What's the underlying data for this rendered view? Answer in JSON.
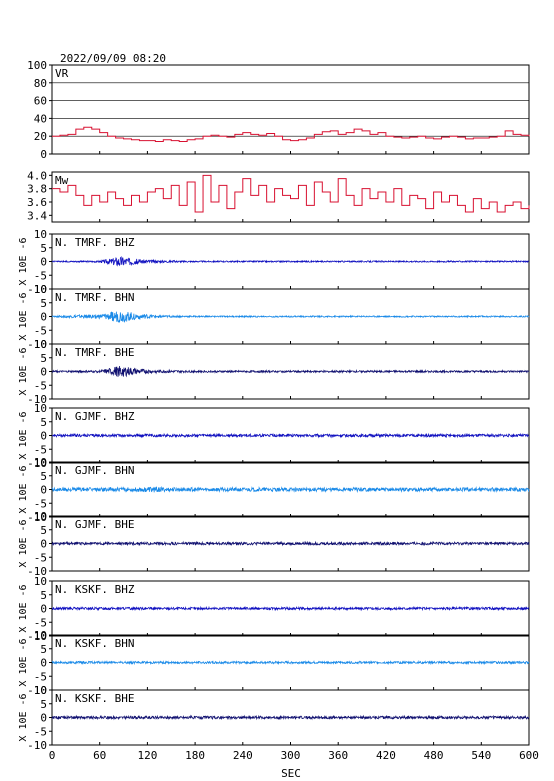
{
  "title": "2022/09/09  08:20",
  "x_axis": {
    "label": "SEC",
    "ticks": [
      "0",
      "60",
      "120",
      "180",
      "240",
      "300",
      "360",
      "420",
      "480",
      "540",
      "600"
    ],
    "range": [
      0,
      600
    ]
  },
  "colors": {
    "vr": "#d81030",
    "mw": "#d81030",
    "dark": "#101070",
    "blue": "#1010c0",
    "light": "#1a8ae8"
  },
  "chart_data": [
    {
      "type": "line",
      "label": "VR",
      "ylim": [
        0,
        100
      ],
      "yticks": [
        "0",
        "20",
        "40",
        "60",
        "80",
        "100"
      ],
      "grid": true,
      "x": [
        0,
        10,
        20,
        30,
        40,
        50,
        60,
        70,
        80,
        90,
        100,
        110,
        120,
        130,
        140,
        150,
        160,
        170,
        180,
        190,
        200,
        210,
        220,
        230,
        240,
        250,
        260,
        270,
        280,
        290,
        300,
        310,
        320,
        330,
        340,
        350,
        360,
        370,
        380,
        390,
        400,
        410,
        420,
        430,
        440,
        450,
        460,
        470,
        480,
        490,
        500,
        510,
        520,
        530,
        540,
        550,
        560,
        570,
        580,
        590,
        600
      ],
      "y": [
        20,
        21,
        22,
        28,
        30,
        28,
        24,
        20,
        18,
        17,
        16,
        15,
        15,
        14,
        16,
        15,
        14,
        16,
        17,
        20,
        21,
        20,
        19,
        22,
        24,
        22,
        21,
        23,
        20,
        16,
        15,
        16,
        18,
        22,
        25,
        26,
        22,
        24,
        28,
        26,
        22,
        24,
        20,
        19,
        18,
        19,
        20,
        18,
        17,
        19,
        20,
        19,
        17,
        18,
        18,
        19,
        20,
        26,
        22,
        21,
        20
      ]
    },
    {
      "type": "line",
      "label": "Mw",
      "ylim": [
        3.3,
        4.05
      ],
      "yticks": [
        "3.4",
        "3.6",
        "3.8",
        "4.0"
      ],
      "grid": false,
      "x": [
        0,
        10,
        20,
        30,
        40,
        50,
        60,
        70,
        80,
        90,
        100,
        110,
        120,
        130,
        140,
        150,
        160,
        170,
        180,
        190,
        200,
        210,
        220,
        230,
        240,
        250,
        260,
        270,
        280,
        290,
        300,
        310,
        320,
        330,
        340,
        350,
        360,
        370,
        380,
        390,
        400,
        410,
        420,
        430,
        440,
        450,
        460,
        470,
        480,
        490,
        500,
        510,
        520,
        530,
        540,
        550,
        560,
        570,
        580,
        590,
        600
      ],
      "y": [
        3.8,
        3.75,
        3.85,
        3.7,
        3.55,
        3.7,
        3.6,
        3.75,
        3.65,
        3.55,
        3.7,
        3.6,
        3.75,
        3.8,
        3.65,
        3.85,
        3.55,
        3.9,
        3.45,
        4.0,
        3.6,
        3.85,
        3.5,
        3.75,
        3.95,
        3.7,
        3.85,
        3.6,
        3.8,
        3.7,
        3.65,
        3.85,
        3.55,
        3.9,
        3.75,
        3.6,
        3.95,
        3.7,
        3.55,
        3.8,
        3.65,
        3.75,
        3.6,
        3.8,
        3.55,
        3.7,
        3.65,
        3.5,
        3.75,
        3.6,
        3.7,
        3.55,
        3.45,
        3.65,
        3.5,
        3.6,
        3.45,
        3.55,
        3.6,
        3.5,
        3.55
      ]
    },
    {
      "type": "line",
      "label": "N. TMRF. BHZ",
      "ylabel": "X 10E -6",
      "ylim": [
        -10,
        10
      ],
      "yticks": [
        "10",
        "5",
        "0",
        "-5",
        "-10"
      ],
      "color": "blue",
      "x": [
        0,
        60,
        75,
        85,
        95,
        110,
        140,
        180,
        300,
        420,
        540,
        600
      ],
      "amplitude": [
        0.2,
        0.3,
        1.2,
        2.0,
        1.5,
        0.8,
        0.4,
        0.25,
        0.25,
        0.25,
        0.25,
        0.25
      ]
    },
    {
      "type": "line",
      "label": "N. TMRF. BHN",
      "ylabel": "X 10E -6",
      "ylim": [
        -10,
        10
      ],
      "yticks": [
        "10",
        "5",
        "0",
        "-5",
        "-10"
      ],
      "color": "light",
      "x": [
        0,
        30,
        60,
        75,
        85,
        95,
        110,
        140,
        180,
        300,
        420,
        540,
        600
      ],
      "amplitude": [
        0.2,
        0.6,
        0.8,
        1.6,
        2.4,
        1.8,
        1.0,
        0.4,
        0.25,
        0.25,
        0.25,
        0.25,
        0.25
      ]
    },
    {
      "type": "line",
      "label": "N. TMRF. BHE",
      "ylabel": "X 10E -6",
      "ylim": [
        -10,
        10
      ],
      "yticks": [
        "10",
        "5",
        "0",
        "-5",
        "-10"
      ],
      "color": "dark",
      "x": [
        0,
        60,
        75,
        85,
        95,
        110,
        140,
        180,
        300,
        420,
        540,
        600
      ],
      "amplitude": [
        0.3,
        0.4,
        1.3,
        2.2,
        1.7,
        0.9,
        0.5,
        0.35,
        0.35,
        0.35,
        0.35,
        0.35
      ]
    },
    {
      "type": "line",
      "label": "N. GJMF. BHZ",
      "ylabel": "X 10E -6",
      "ylim": [
        -10,
        10
      ],
      "yticks": [
        "10",
        "5",
        "0",
        "-5",
        "-10"
      ],
      "color": "blue",
      "x": [
        0,
        150,
        300,
        450,
        600
      ],
      "amplitude": [
        0.5,
        0.5,
        0.5,
        0.5,
        0.5
      ]
    },
    {
      "type": "line",
      "label": "N. GJMF. BHN",
      "ylabel": "X 10E -6",
      "ylim": [
        -10,
        10
      ],
      "yticks": [
        "10",
        "5",
        "0",
        "-5",
        "-10"
      ],
      "color": "light",
      "x": [
        0,
        60,
        110,
        125,
        140,
        180,
        300,
        420,
        540,
        600
      ],
      "amplitude": [
        0.7,
        0.7,
        0.8,
        1.1,
        0.8,
        0.7,
        0.7,
        0.7,
        0.7,
        0.7
      ]
    },
    {
      "type": "line",
      "label": "N. GJMF. BHE",
      "ylabel": "X 10E -6",
      "ylim": [
        -10,
        10
      ],
      "yticks": [
        "10",
        "5",
        "0",
        "-5",
        "-10"
      ],
      "color": "dark",
      "x": [
        0,
        150,
        300,
        450,
        600
      ],
      "amplitude": [
        0.5,
        0.5,
        0.5,
        0.5,
        0.5
      ]
    },
    {
      "type": "line",
      "label": "N. KSKF. BHZ",
      "ylabel": "X 10E -6",
      "ylim": [
        -10,
        10
      ],
      "yticks": [
        "10",
        "5",
        "0",
        "-5",
        "-10"
      ],
      "color": "blue",
      "x": [
        0,
        150,
        300,
        450,
        600
      ],
      "amplitude": [
        0.45,
        0.45,
        0.45,
        0.45,
        0.45
      ]
    },
    {
      "type": "line",
      "label": "N. KSKF. BHN",
      "ylabel": "X 10E -6",
      "ylim": [
        -10,
        10
      ],
      "yticks": [
        "10",
        "5",
        "0",
        "-5",
        "-10"
      ],
      "color": "light",
      "x": [
        0,
        150,
        300,
        450,
        600
      ],
      "amplitude": [
        0.4,
        0.4,
        0.4,
        0.4,
        0.4
      ]
    },
    {
      "type": "line",
      "label": "N. KSKF. BHE",
      "ylabel": "X 10E -6",
      "ylim": [
        -10,
        10
      ],
      "yticks": [
        "10",
        "5",
        "0",
        "-5",
        "-10"
      ],
      "color": "dark",
      "x": [
        0,
        150,
        300,
        450,
        600
      ],
      "amplitude": [
        0.5,
        0.5,
        0.5,
        0.5,
        0.5
      ]
    }
  ]
}
